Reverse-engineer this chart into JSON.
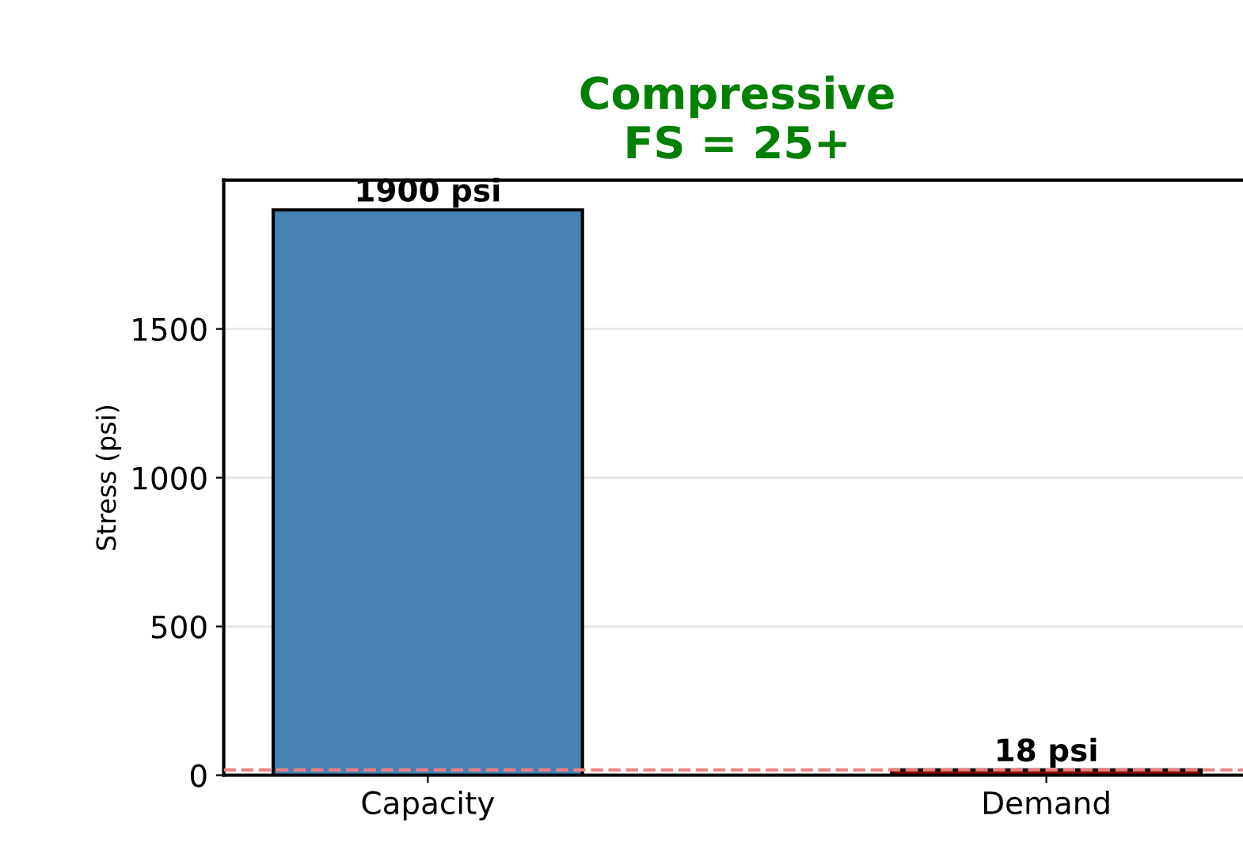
{
  "chart_data": {
    "type": "bar",
    "title": "Compressive\nFS = 25+",
    "categories": [
      "Capacity",
      "Demand"
    ],
    "values": [
      1900,
      18
    ],
    "colors": [
      "#4682b4",
      "#8b0000"
    ],
    "value_labels": [
      "1900 psi",
      "18 psi"
    ],
    "ylabel": "Stress (psi)",
    "ylim": [
      0,
      2000
    ],
    "yticks": [
      0,
      500,
      1000,
      1500
    ],
    "grid": "y",
    "ref_lines": [
      {
        "axis": "y",
        "value": 18,
        "color": "#f08080",
        "line_style": "dashed"
      }
    ]
  }
}
